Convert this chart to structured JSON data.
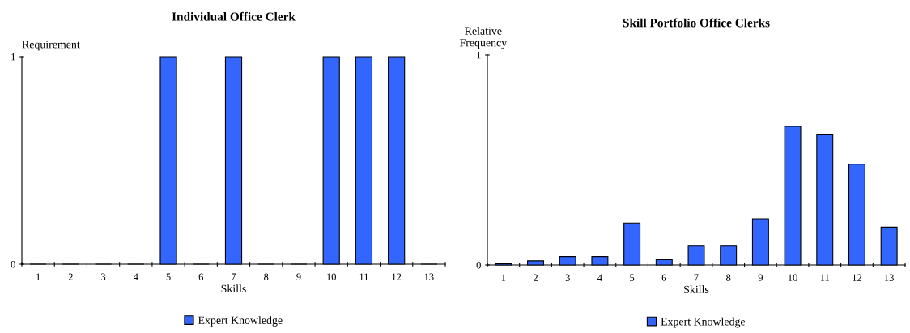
{
  "chart_data": [
    {
      "type": "bar",
      "title": "Individual Office Clerk",
      "xlabel": "Skills",
      "ylabel": "Requirement",
      "categories": [
        "1",
        "2",
        "3",
        "4",
        "5",
        "6",
        "7",
        "8",
        "9",
        "10",
        "11",
        "12",
        "13"
      ],
      "series": [
        {
          "name": "Expert Knowledge",
          "color": "#3366ff",
          "values": [
            0,
            0,
            0,
            0,
            1,
            0,
            1,
            0,
            0,
            1,
            1,
            1,
            0
          ]
        }
      ],
      "ylim": [
        0,
        1
      ],
      "yticks": [
        0,
        1
      ],
      "grid": false,
      "legend": "bottom"
    },
    {
      "type": "bar",
      "title": "Skill Portfolio Office Clerks",
      "xlabel": "Skills",
      "ylabel": "Relative\nFrequency",
      "categories": [
        "1",
        "2",
        "3",
        "4",
        "5",
        "6",
        "7",
        "8",
        "9",
        "10",
        "11",
        "12",
        "13"
      ],
      "series": [
        {
          "name": "Expert Knowledge",
          "color": "#3366ff",
          "values": [
            0.006,
            0.02,
            0.04,
            0.04,
            0.2,
            0.025,
            0.09,
            0.09,
            0.22,
            0.66,
            0.62,
            0.48,
            0.18
          ]
        }
      ],
      "ylim": [
        0,
        1
      ],
      "yticks": [
        0,
        1
      ],
      "grid": false,
      "legend": "bottom"
    }
  ]
}
